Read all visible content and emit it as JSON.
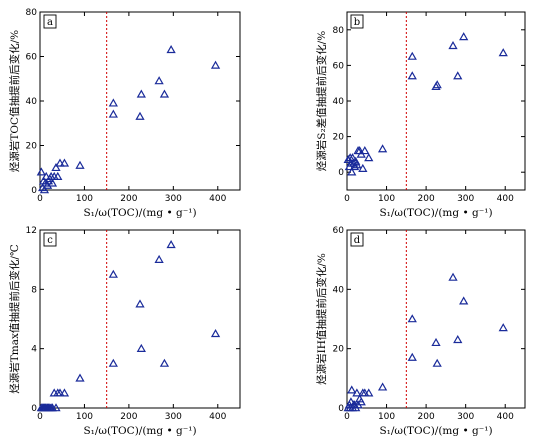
{
  "chart_data": [
    {
      "type": "scatter",
      "panel_label": "a",
      "ylabel": "烃源岩TOC值抽提前后变化/%",
      "xlabel": "S₁/ω(TOC)/(mg • g⁻¹)",
      "xlim": [
        0,
        450
      ],
      "ylim": [
        0,
        80
      ],
      "xticks": [
        0,
        100,
        200,
        300,
        400
      ],
      "yticks": [
        0,
        20,
        40,
        60,
        80
      ],
      "vline_x": 150,
      "points": [
        [
          3,
          8
        ],
        [
          6,
          1
        ],
        [
          8,
          4
        ],
        [
          10,
          0
        ],
        [
          12,
          3
        ],
        [
          14,
          6
        ],
        [
          17,
          2
        ],
        [
          19,
          4
        ],
        [
          22,
          5
        ],
        [
          25,
          6
        ],
        [
          28,
          3
        ],
        [
          32,
          6
        ],
        [
          36,
          10
        ],
        [
          40,
          6
        ],
        [
          45,
          12
        ],
        [
          55,
          12
        ],
        [
          90,
          11
        ],
        [
          165,
          39
        ],
        [
          165,
          34
        ],
        [
          225,
          33
        ],
        [
          228,
          43
        ],
        [
          268,
          49
        ],
        [
          280,
          43
        ],
        [
          295,
          63
        ],
        [
          395,
          56
        ]
      ]
    },
    {
      "type": "scatter",
      "panel_label": "b",
      "ylabel": "烃源岩S₂差值抽提前后变化/%",
      "xlabel": "S₁/ω(TOC)/(mg • g⁻¹)",
      "xlim": [
        0,
        450
      ],
      "ylim": [
        -10,
        90
      ],
      "xticks": [
        0,
        100,
        200,
        300,
        400
      ],
      "yticks": [
        0,
        20,
        40,
        60,
        80
      ],
      "vline_x": 150,
      "points": [
        [
          3,
          7
        ],
        [
          6,
          3
        ],
        [
          8,
          8
        ],
        [
          10,
          5
        ],
        [
          12,
          0
        ],
        [
          14,
          8
        ],
        [
          17,
          5
        ],
        [
          19,
          3
        ],
        [
          22,
          6
        ],
        [
          25,
          4
        ],
        [
          28,
          12
        ],
        [
          32,
          12
        ],
        [
          36,
          10
        ],
        [
          40,
          2
        ],
        [
          45,
          12
        ],
        [
          55,
          8
        ],
        [
          90,
          13
        ],
        [
          165,
          65
        ],
        [
          165,
          54
        ],
        [
          225,
          48
        ],
        [
          228,
          49
        ],
        [
          268,
          71
        ],
        [
          280,
          54
        ],
        [
          295,
          76
        ],
        [
          395,
          67
        ]
      ]
    },
    {
      "type": "scatter",
      "panel_label": "c",
      "ylabel": "烃源岩Tmax值抽提前后变化/℃",
      "xlabel": "S₁/ω(TOC)/(mg • g⁻¹)",
      "xlim": [
        0,
        450
      ],
      "ylim": [
        0,
        12
      ],
      "xticks": [
        0,
        100,
        200,
        300,
        400
      ],
      "yticks": [
        0,
        4,
        8,
        12
      ],
      "vline_x": 150,
      "points": [
        [
          3,
          0
        ],
        [
          6,
          0
        ],
        [
          8,
          0
        ],
        [
          10,
          0
        ],
        [
          12,
          0
        ],
        [
          14,
          0
        ],
        [
          17,
          0
        ],
        [
          19,
          0
        ],
        [
          22,
          0
        ],
        [
          25,
          0
        ],
        [
          28,
          0
        ],
        [
          32,
          1
        ],
        [
          36,
          0
        ],
        [
          40,
          1
        ],
        [
          45,
          1
        ],
        [
          55,
          1
        ],
        [
          90,
          2
        ],
        [
          165,
          9
        ],
        [
          165,
          3
        ],
        [
          225,
          7
        ],
        [
          228,
          4
        ],
        [
          268,
          10
        ],
        [
          280,
          3
        ],
        [
          295,
          11
        ],
        [
          395,
          5
        ]
      ]
    },
    {
      "type": "scatter",
      "panel_label": "d",
      "ylabel": "烃源岩IH值抽提前后变化/%",
      "xlabel": "S₁/ω(TOC)/(mg • g⁻¹)",
      "xlim": [
        0,
        450
      ],
      "ylim": [
        0,
        60
      ],
      "xticks": [
        0,
        100,
        200,
        300,
        400
      ],
      "yticks": [
        0,
        20,
        40,
        60
      ],
      "vline_x": 150,
      "points": [
        [
          3,
          0
        ],
        [
          6,
          1
        ],
        [
          8,
          0
        ],
        [
          10,
          2
        ],
        [
          12,
          6
        ],
        [
          14,
          0
        ],
        [
          17,
          1
        ],
        [
          19,
          1
        ],
        [
          22,
          0
        ],
        [
          25,
          5
        ],
        [
          28,
          1
        ],
        [
          32,
          3
        ],
        [
          36,
          2
        ],
        [
          40,
          5
        ],
        [
          45,
          5
        ],
        [
          55,
          5
        ],
        [
          90,
          7
        ],
        [
          165,
          30
        ],
        [
          165,
          17
        ],
        [
          225,
          22
        ],
        [
          228,
          15
        ],
        [
          268,
          44
        ],
        [
          280,
          23
        ],
        [
          295,
          36
        ],
        [
          395,
          27
        ]
      ]
    }
  ]
}
